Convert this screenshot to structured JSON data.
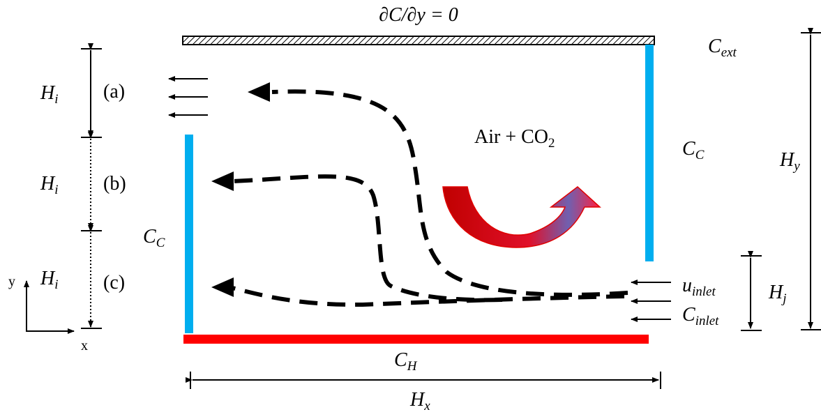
{
  "top_boundary_condition": "∂C/∂y = 0",
  "labels": {
    "c_ext": {
      "main": "C",
      "sub": "ext"
    },
    "c_c_right": {
      "main": "C",
      "sub": "C"
    },
    "c_c_left": {
      "main": "C",
      "sub": "C"
    },
    "c_h": {
      "main": "C",
      "sub": "H"
    },
    "h_x": {
      "main": "H",
      "sub": "x"
    },
    "h_y": {
      "main": "H",
      "sub": "y"
    },
    "h_j": {
      "main": "H",
      "sub": "j"
    },
    "u_inlet": {
      "main": "u",
      "sub": "inlet"
    },
    "c_inlet": {
      "main": "C",
      "sub": "inlet"
    }
  },
  "openings": [
    {
      "height": {
        "main": "H",
        "sub": "i"
      },
      "label": "(a)"
    },
    {
      "height": {
        "main": "H",
        "sub": "i"
      },
      "label": "(b)"
    },
    {
      "height": {
        "main": "H",
        "sub": "i"
      },
      "label": "(c)"
    }
  ],
  "mixture": {
    "text": "Air + CO",
    "sub": "2"
  },
  "axes": {
    "y": "y",
    "x": "x"
  }
}
